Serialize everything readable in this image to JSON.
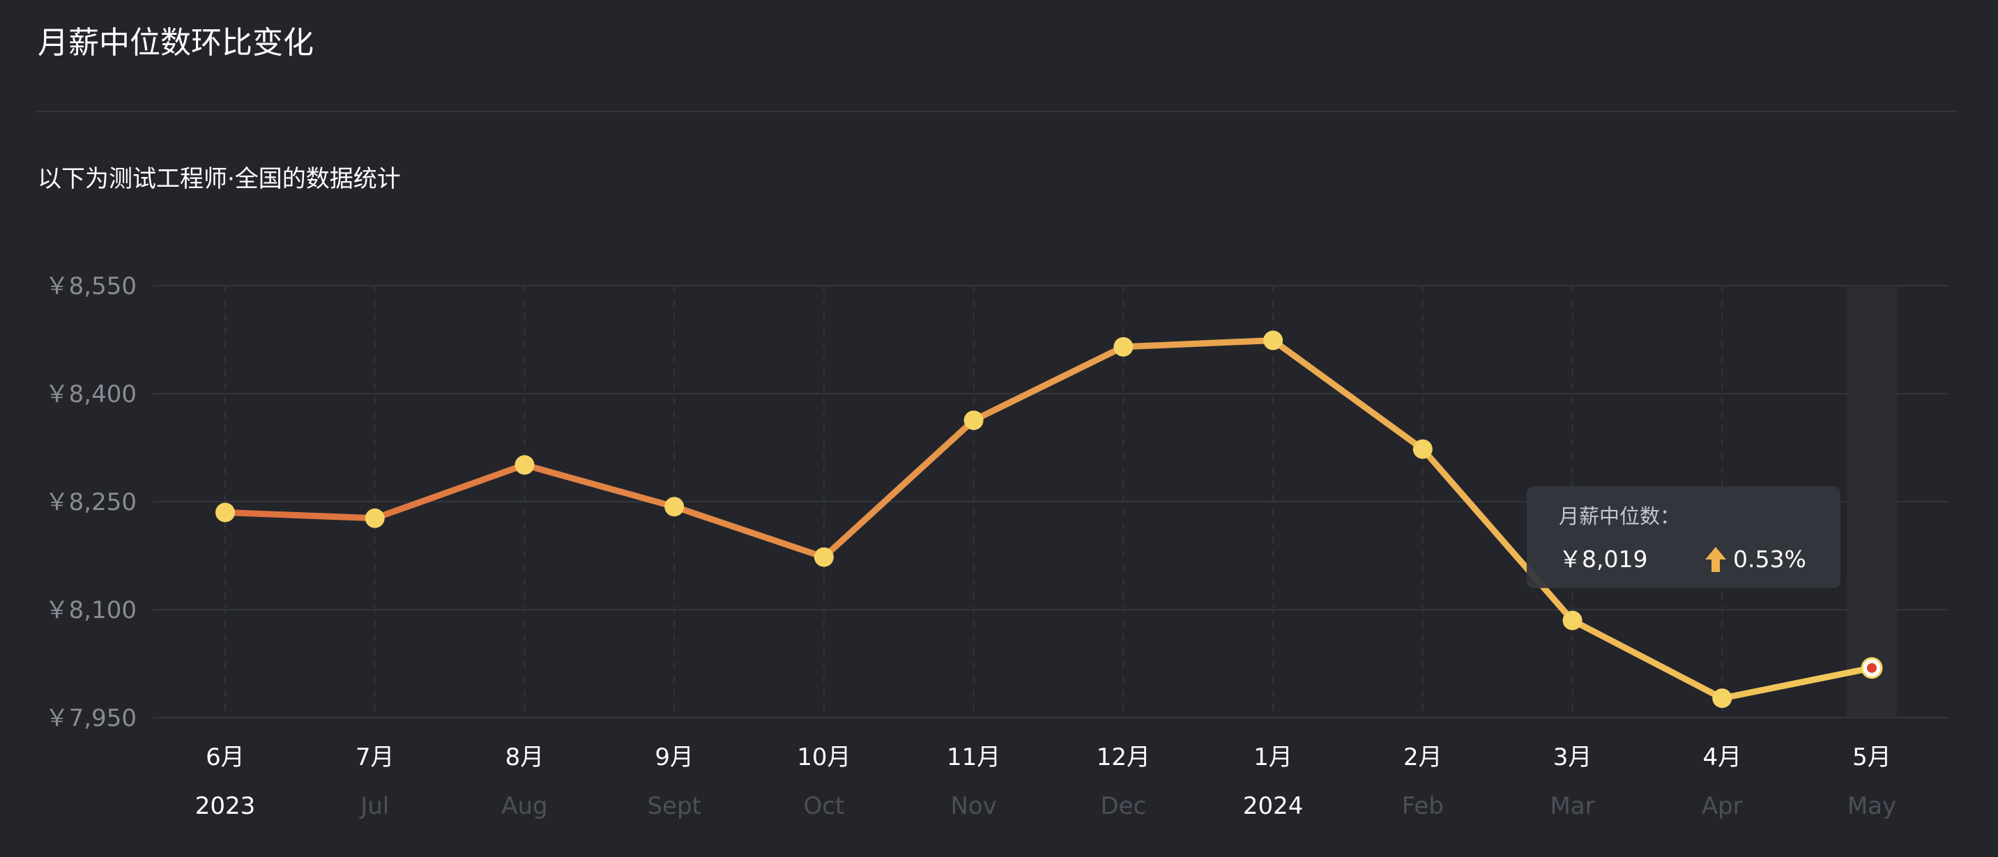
{
  "title": "月薪中位数环比变化",
  "subtitle": "以下为测试工程师·全国的数据统计",
  "tooltip": {
    "label": "月薪中位数：",
    "value": "￥8,019",
    "change": "0.53%",
    "direction": "up",
    "arrow_icon": "arrow-up-icon",
    "highlight_index": 11
  },
  "colors": {
    "background": "#24252b",
    "grid": "#34363d",
    "line_start": "#dd6f3e",
    "line_end": "#f3c95a",
    "point": "#f6d463",
    "point_active_fill": "#e0402f",
    "axis_text": "#8a8c94",
    "axis_text_primary": "#ffffff",
    "axis_text_faded": "#4d4f57",
    "arrow": "#f0b24f"
  },
  "chart_data": {
    "type": "line",
    "title": "月薪中位数环比变化",
    "subtitle": "以下为测试工程师·全国的数据统计",
    "categories": [
      "6月",
      "7月",
      "8月",
      "9月",
      "10月",
      "11月",
      "12月",
      "1月",
      "2月",
      "3月",
      "4月",
      "5月"
    ],
    "secondary_labels": [
      "2023",
      "Jul",
      "Aug",
      "Sept",
      "Oct",
      "Nov",
      "Dec",
      "2024",
      "Feb",
      "Mar",
      "Apr",
      "May"
    ],
    "secondary_primary": [
      true,
      false,
      false,
      false,
      false,
      false,
      false,
      true,
      false,
      false,
      false,
      false
    ],
    "series": [
      {
        "values": [
          8235,
          8227,
          8301,
          8243,
          8173,
          8363,
          8465,
          8474,
          8323,
          8085,
          7977,
          8019
        ]
      }
    ],
    "ylim": [
      7950,
      8550
    ],
    "y_ticks": [
      7950,
      8100,
      8250,
      8400,
      8550
    ],
    "y_tick_labels": [
      "￥7,950",
      "￥8,100",
      "￥8,250",
      "￥8,400",
      "￥8,550"
    ],
    "xlabel": "",
    "ylabel": "",
    "grid": true,
    "legend": "none"
  }
}
